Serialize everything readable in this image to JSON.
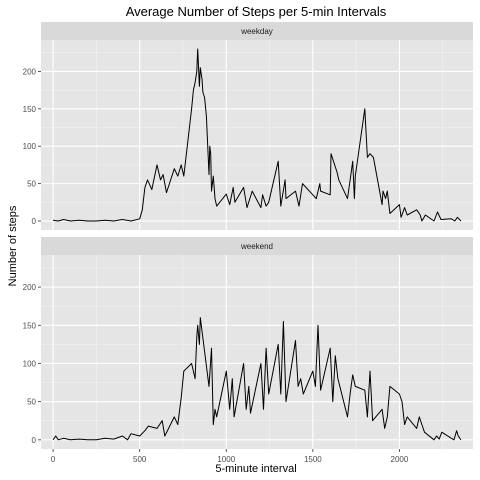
{
  "colors": {
    "panel_bg": "#e5e5e5",
    "strip_bg": "#d9d9d9",
    "grid_major": "#ffffff",
    "grid_minor": "#f2f2f2",
    "line": "#000000",
    "tick_text": "#4d4d4d"
  },
  "chart_data": {
    "type": "line",
    "title": "Average Number of Steps per 5-min Intervals",
    "xlabel": "5-minute interval",
    "ylabel": "Number of steps",
    "xlim": [
      -70,
      2425
    ],
    "ylim": [
      -12,
      242
    ],
    "x_ticks": [
      0,
      500,
      1000,
      1500,
      2000
    ],
    "y_ticks": [
      0,
      50,
      100,
      150,
      200
    ],
    "grid": true,
    "panels": [
      {
        "name": "weekday",
        "x": [
          0,
          30,
          60,
          100,
          150,
          200,
          250,
          300,
          350,
          400,
          450,
          500,
          515,
          530,
          545,
          555,
          570,
          600,
          620,
          635,
          645,
          655,
          700,
          720,
          740,
          755,
          800,
          810,
          820,
          830,
          835,
          845,
          850,
          860,
          865,
          875,
          885,
          900,
          905,
          910,
          915,
          925,
          935,
          945,
          1000,
          1020,
          1040,
          1050,
          1100,
          1120,
          1150,
          1200,
          1210,
          1230,
          1245,
          1300,
          1315,
          1340,
          1345,
          1400,
          1420,
          1440,
          1500,
          1520,
          1540,
          1545,
          1600,
          1605,
          1640,
          1650,
          1700,
          1720,
          1730,
          1740,
          1745,
          1800,
          1815,
          1830,
          1850,
          1900,
          1905,
          1920,
          1930,
          1945,
          2000,
          2010,
          2030,
          2045,
          2100,
          2120,
          2130,
          2150,
          2200,
          2220,
          2240,
          2300,
          2320,
          2335,
          2355
        ],
        "y": [
          1,
          0,
          2,
          0,
          1,
          0,
          0,
          1,
          0,
          2,
          0,
          3,
          15,
          45,
          55,
          50,
          42,
          75,
          55,
          62,
          50,
          38,
          70,
          60,
          75,
          60,
          150,
          175,
          185,
          200,
          230,
          180,
          205,
          190,
          172,
          165,
          140,
          62,
          100,
          90,
          40,
          60,
          30,
          20,
          36,
          22,
          45,
          25,
          45,
          18,
          40,
          18,
          35,
          20,
          25,
          80,
          20,
          55,
          30,
          40,
          20,
          50,
          35,
          30,
          50,
          40,
          35,
          90,
          65,
          55,
          30,
          62,
          80,
          30,
          60,
          150,
          85,
          90,
          85,
          22,
          40,
          30,
          40,
          10,
          22,
          5,
          18,
          8,
          15,
          8,
          0,
          8,
          0,
          12,
          2,
          3,
          0,
          5,
          0
        ]
      },
      {
        "name": "weekend",
        "x": [
          0,
          15,
          30,
          60,
          100,
          150,
          200,
          250,
          300,
          350,
          400,
          430,
          450,
          500,
          530,
          550,
          600,
          630,
          645,
          700,
          720,
          740,
          755,
          800,
          820,
          830,
          835,
          845,
          850,
          900,
          915,
          925,
          935,
          945,
          1000,
          1020,
          1035,
          1045,
          1100,
          1115,
          1130,
          1140,
          1200,
          1215,
          1230,
          1245,
          1300,
          1315,
          1330,
          1345,
          1400,
          1415,
          1430,
          1445,
          1500,
          1515,
          1530,
          1545,
          1600,
          1615,
          1630,
          1645,
          1700,
          1715,
          1730,
          1745,
          1800,
          1815,
          1830,
          1845,
          1900,
          1915,
          1930,
          1945,
          2000,
          2015,
          2030,
          2045,
          2100,
          2115,
          2130,
          2145,
          2200,
          2215,
          2230,
          2245,
          2300,
          2315,
          2330,
          2340,
          2355
        ],
        "y": [
          0,
          5,
          0,
          2,
          0,
          1,
          0,
          0,
          2,
          1,
          5,
          0,
          8,
          5,
          12,
          18,
          15,
          25,
          5,
          30,
          20,
          55,
          90,
          100,
          80,
          135,
          150,
          125,
          160,
          70,
          120,
          20,
          40,
          30,
          90,
          40,
          80,
          30,
          100,
          40,
          70,
          35,
          100,
          40,
          120,
          60,
          125,
          60,
          155,
          50,
          130,
          70,
          80,
          60,
          90,
          70,
          150,
          65,
          120,
          50,
          110,
          80,
          30,
          60,
          85,
          70,
          65,
          30,
          90,
          25,
          40,
          15,
          30,
          70,
          60,
          50,
          20,
          30,
          15,
          30,
          20,
          10,
          0,
          5,
          1,
          10,
          2,
          0,
          12,
          5,
          0
        ]
      }
    ]
  }
}
